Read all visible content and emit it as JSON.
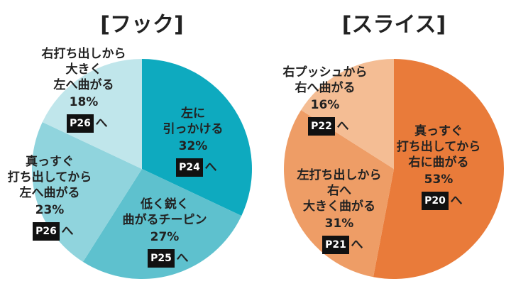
{
  "chart_data": [
    {
      "type": "pie",
      "title": "[フック]",
      "categories": [
        "左に\n引っかける",
        "低く鋭く\n曲がるチーピン",
        "真っすぐ\n打ち出してから\n左へ曲がる",
        "右打ち出しから\n大きく\n左へ曲がる"
      ],
      "values": [
        32,
        27,
        23,
        18
      ],
      "value_labels": [
        "32%",
        "27%",
        "23%",
        "18%"
      ],
      "colors": [
        "#0eaabf",
        "#5ec1ce",
        "#90d4dd",
        "#c0e6eb"
      ],
      "pages": [
        "P24",
        "P25",
        "P26",
        "P26"
      ],
      "page_suffix": "へ"
    },
    {
      "type": "pie",
      "title": "[スライス]",
      "categories": [
        "真っすぐ\n打ち出してから\n右に曲がる",
        "左打ち出しから\n右へ\n大きく曲がる",
        "右プッシュから\n右へ曲がる"
      ],
      "values": [
        53,
        31,
        16
      ],
      "value_labels": [
        "53%",
        "31%",
        "16%"
      ],
      "colors": [
        "#e97b3a",
        "#ee9d66",
        "#f4bd94"
      ],
      "pages": [
        "P20",
        "P21",
        "P22"
      ],
      "page_suffix": "へ"
    }
  ]
}
